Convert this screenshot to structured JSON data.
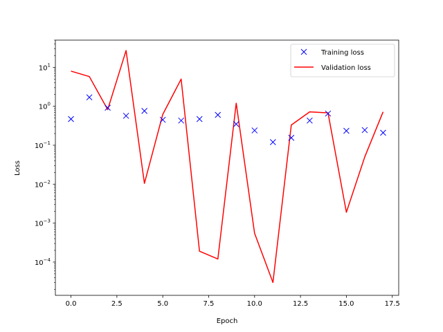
{
  "chart_data": {
    "type": "line",
    "title": "",
    "xlabel": "Epoch",
    "ylabel": "Loss",
    "yscale": "log",
    "xlim": [
      -0.85,
      17.85
    ],
    "ylim": [
      1.4e-05,
      50
    ],
    "x_ticks": [
      0,
      2.5,
      5,
      7.5,
      10,
      12.5,
      15,
      17.5
    ],
    "x_tick_labels": [
      "0.0",
      "2.5",
      "5.0",
      "7.5",
      "10.0",
      "12.5",
      "15.0",
      "17.5"
    ],
    "y_ticks": [
      0.0001,
      0.001,
      0.01,
      0.1,
      1,
      10
    ],
    "y_tick_base": "10",
    "y_tick_exponents": [
      "−4",
      "−3",
      "−2",
      "−1",
      "0",
      "1"
    ],
    "grid": false,
    "legend_position": "top-right",
    "x": [
      0,
      1,
      2,
      3,
      4,
      5,
      6,
      7,
      8,
      9,
      10,
      11,
      12,
      13,
      14,
      15,
      16,
      17
    ],
    "series": [
      {
        "name": "Training loss",
        "kind": "markers",
        "marker": "x",
        "color": "#0000ff",
        "values": [
          0.47,
          1.7,
          0.92,
          0.57,
          0.76,
          0.45,
          0.43,
          0.47,
          0.6,
          0.35,
          0.24,
          0.12,
          0.155,
          0.43,
          0.65,
          0.235,
          0.245,
          0.21
        ]
      },
      {
        "name": "Validation loss",
        "kind": "line",
        "color": "#ff0000",
        "values": [
          8.0,
          5.8,
          0.82,
          27.0,
          0.0105,
          0.62,
          5.0,
          0.00019,
          0.00012,
          1.2,
          0.00055,
          3e-05,
          0.33,
          0.72,
          0.68,
          0.0019,
          0.05,
          0.72
        ]
      }
    ]
  }
}
